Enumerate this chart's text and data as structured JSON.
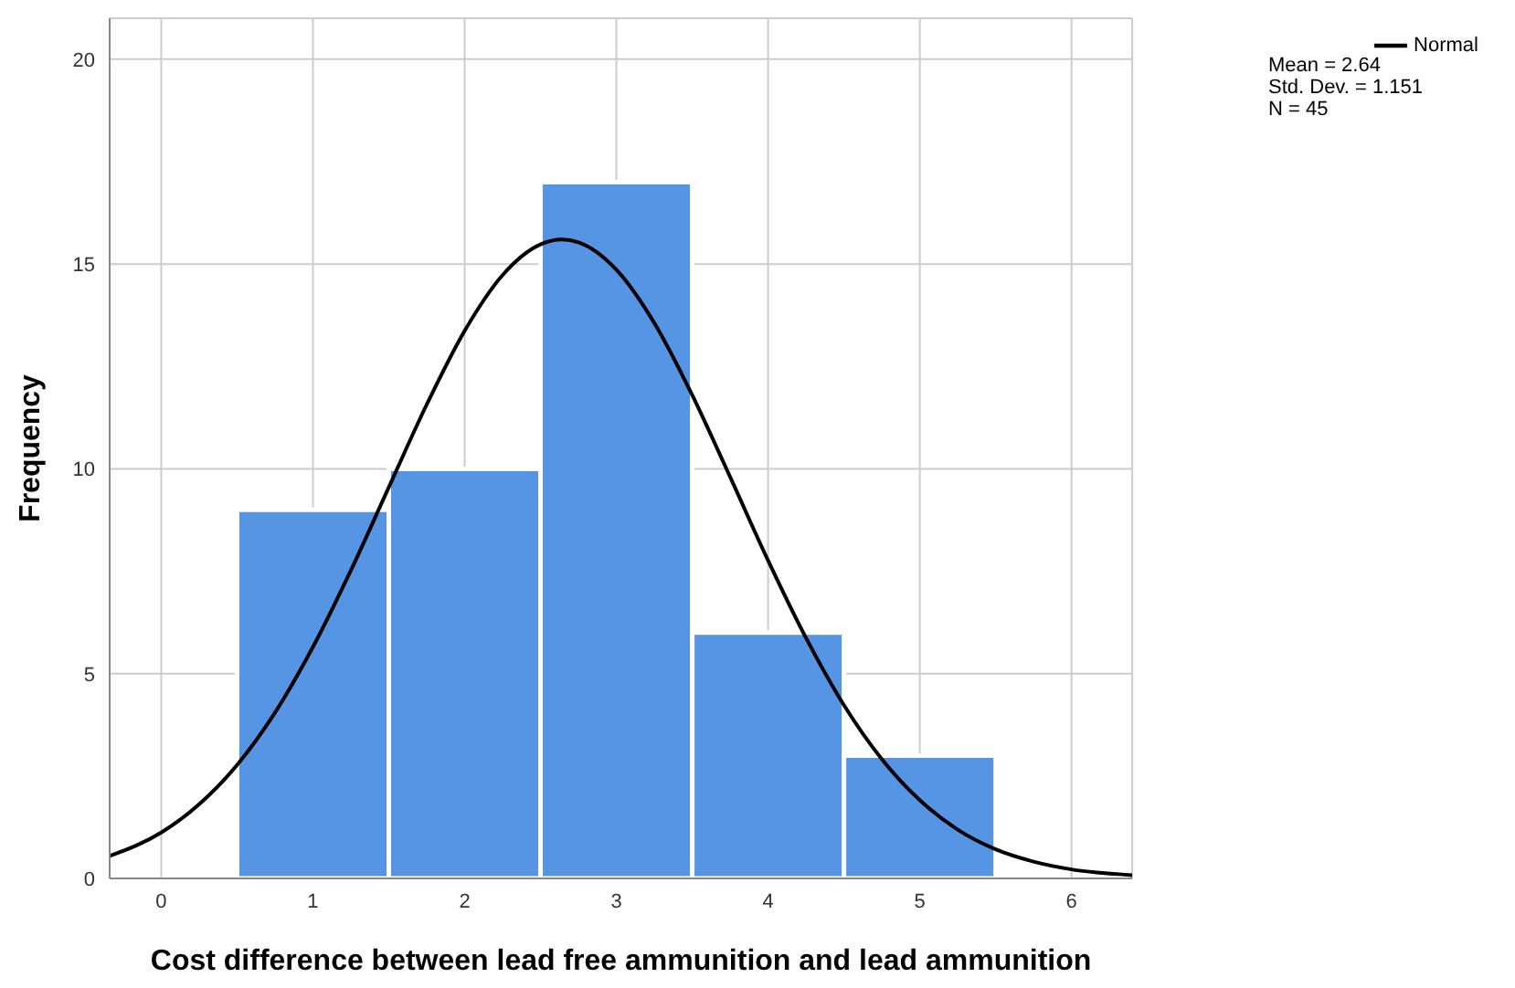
{
  "chart_data": {
    "type": "histogram",
    "xlabel": "Cost difference between lead free ammunition and lead ammunition",
    "ylabel": "Frequency",
    "bins": [
      0.5,
      1.5,
      2.5,
      3.5,
      4.5,
      5.5
    ],
    "values": [
      9,
      10,
      17,
      6,
      3
    ],
    "color": "#5595e3",
    "series": [
      {
        "name": "Normal",
        "type": "line",
        "color": "#000000",
        "x": [
          -0.34,
          0,
          0.25,
          0.5,
          0.75,
          1,
          1.25,
          1.5,
          1.75,
          2,
          2.25,
          2.5,
          2.64,
          2.75,
          3,
          3.25,
          3.5,
          3.75,
          4,
          4.25,
          4.5,
          4.75,
          5,
          5.25,
          5.5,
          5.75,
          6,
          6.4
        ],
        "values": [
          0.55,
          1.12,
          1.81,
          2.77,
          4.05,
          5.65,
          7.52,
          9.55,
          11.57,
          13.37,
          14.73,
          15.48,
          15.6,
          15.53,
          14.86,
          13.56,
          11.8,
          9.8,
          7.76,
          5.87,
          4.23,
          2.91,
          1.91,
          1.19,
          0.71,
          0.41,
          0.22,
          0.08
        ]
      }
    ],
    "xlim": [
      -0.34,
      6.4
    ],
    "xticks": [
      0,
      1,
      2,
      3,
      4,
      5,
      6
    ],
    "ylim": [
      0,
      21
    ],
    "yticks": [
      0,
      5,
      10,
      15,
      20
    ],
    "grid": true,
    "legend": "top right",
    "marker": "none",
    "line_style": "solid",
    "annotations": [
      "Mean = 2.64",
      "Std. Dev. = 1.151",
      "N = 45"
    ]
  }
}
